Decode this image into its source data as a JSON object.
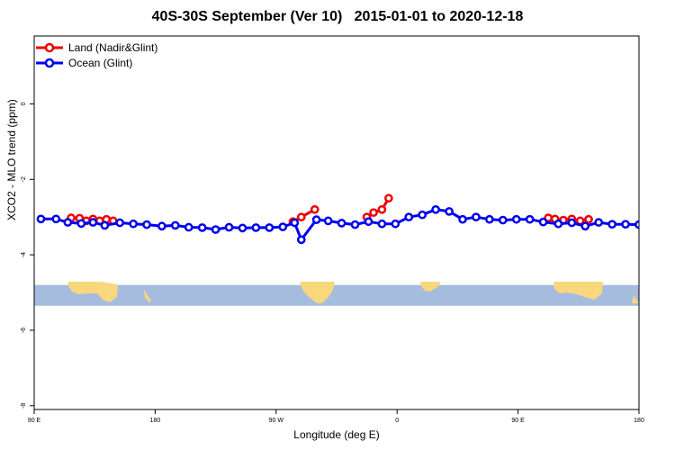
{
  "chart_data": {
    "type": "line",
    "title": "40S-30S September (Ver 10)   2015-01-01 to 2020-12-18",
    "xlabel": "Longitude (deg E)",
    "ylabel": "XCO2 - MLO trend (ppm)",
    "xlim": [
      90,
      450
    ],
    "ylim": [
      -8.1,
      1.8
    ],
    "x_ticks": [
      {
        "value": 90,
        "label": "90 E"
      },
      {
        "value": 162,
        "label": "180"
      },
      {
        "value": 234,
        "label": "90 W"
      },
      {
        "value": 306,
        "label": "0"
      },
      {
        "value": 378,
        "label": "90 E"
      },
      {
        "value": 450,
        "label": "180"
      }
    ],
    "y_ticks": [
      {
        "value": 0,
        "label": "0"
      },
      {
        "value": -2,
        "label": "-2"
      },
      {
        "value": -4,
        "label": "-4"
      },
      {
        "value": -6,
        "label": "-6"
      },
      {
        "value": -8,
        "label": "-8"
      }
    ],
    "legend_position": "top-left",
    "map_band": {
      "y_top": -4.8,
      "y_bottom": -5.35,
      "ocean_color": "#a5bcdf",
      "land_color": "#f8d77d"
    },
    "series": [
      {
        "name": "Land (Nadir&Glint)",
        "color": "#ee0000",
        "segments": [
          [
            [
              112,
              -3.02
            ],
            [
              117,
              -3.03
            ],
            [
              121,
              -3.1
            ],
            [
              125,
              -3.05
            ],
            [
              129,
              -3.1
            ],
            [
              133,
              -3.06
            ],
            [
              137,
              -3.1
            ]
          ],
          [
            [
              244,
              -3.12
            ],
            [
              249,
              -3.0
            ],
            [
              257,
              -2.8
            ]
          ],
          [
            [
              288,
              -3.0
            ],
            [
              292,
              -2.88
            ],
            [
              297,
              -2.8
            ],
            [
              301,
              -2.5
            ]
          ],
          [
            [
              396,
              -3.02
            ],
            [
              400,
              -3.05
            ],
            [
              405,
              -3.08
            ],
            [
              410,
              -3.05
            ],
            [
              415,
              -3.1
            ],
            [
              420,
              -3.06
            ]
          ]
        ]
      },
      {
        "name": "Ocean (Glint)",
        "color": "#0000ee",
        "segments": [
          [
            [
              94,
              -3.05
            ],
            [
              103,
              -3.05
            ],
            [
              110,
              -3.14
            ],
            [
              118,
              -3.17
            ],
            [
              125,
              -3.14
            ],
            [
              132,
              -3.22
            ],
            [
              141,
              -3.15
            ],
            [
              149,
              -3.18
            ],
            [
              157,
              -3.2
            ],
            [
              166,
              -3.24
            ],
            [
              174,
              -3.22
            ],
            [
              182,
              -3.27
            ],
            [
              190,
              -3.28
            ],
            [
              198,
              -3.33
            ],
            [
              206,
              -3.27
            ],
            [
              214,
              -3.29
            ],
            [
              222,
              -3.28
            ],
            [
              230,
              -3.28
            ],
            [
              238,
              -3.26
            ],
            [
              245,
              -3.15
            ],
            [
              249,
              -3.6
            ],
            [
              258,
              -3.07
            ],
            [
              265,
              -3.1
            ],
            [
              273,
              -3.16
            ],
            [
              281,
              -3.2
            ],
            [
              289,
              -3.12
            ],
            [
              297,
              -3.18
            ],
            [
              305,
              -3.18
            ],
            [
              313,
              -3.0
            ],
            [
              321,
              -2.94
            ],
            [
              329,
              -2.8
            ],
            [
              337,
              -2.85
            ],
            [
              345,
              -3.06
            ],
            [
              353,
              -3.0
            ],
            [
              361,
              -3.06
            ],
            [
              369,
              -3.08
            ],
            [
              377,
              -3.06
            ],
            [
              385,
              -3.06
            ],
            [
              393,
              -3.13
            ],
            [
              402,
              -3.18
            ],
            [
              410,
              -3.15
            ],
            [
              418,
              -3.24
            ],
            [
              426,
              -3.14
            ],
            [
              434,
              -3.19
            ],
            [
              442,
              -3.19
            ],
            [
              450,
              -3.2
            ]
          ]
        ]
      }
    ]
  }
}
